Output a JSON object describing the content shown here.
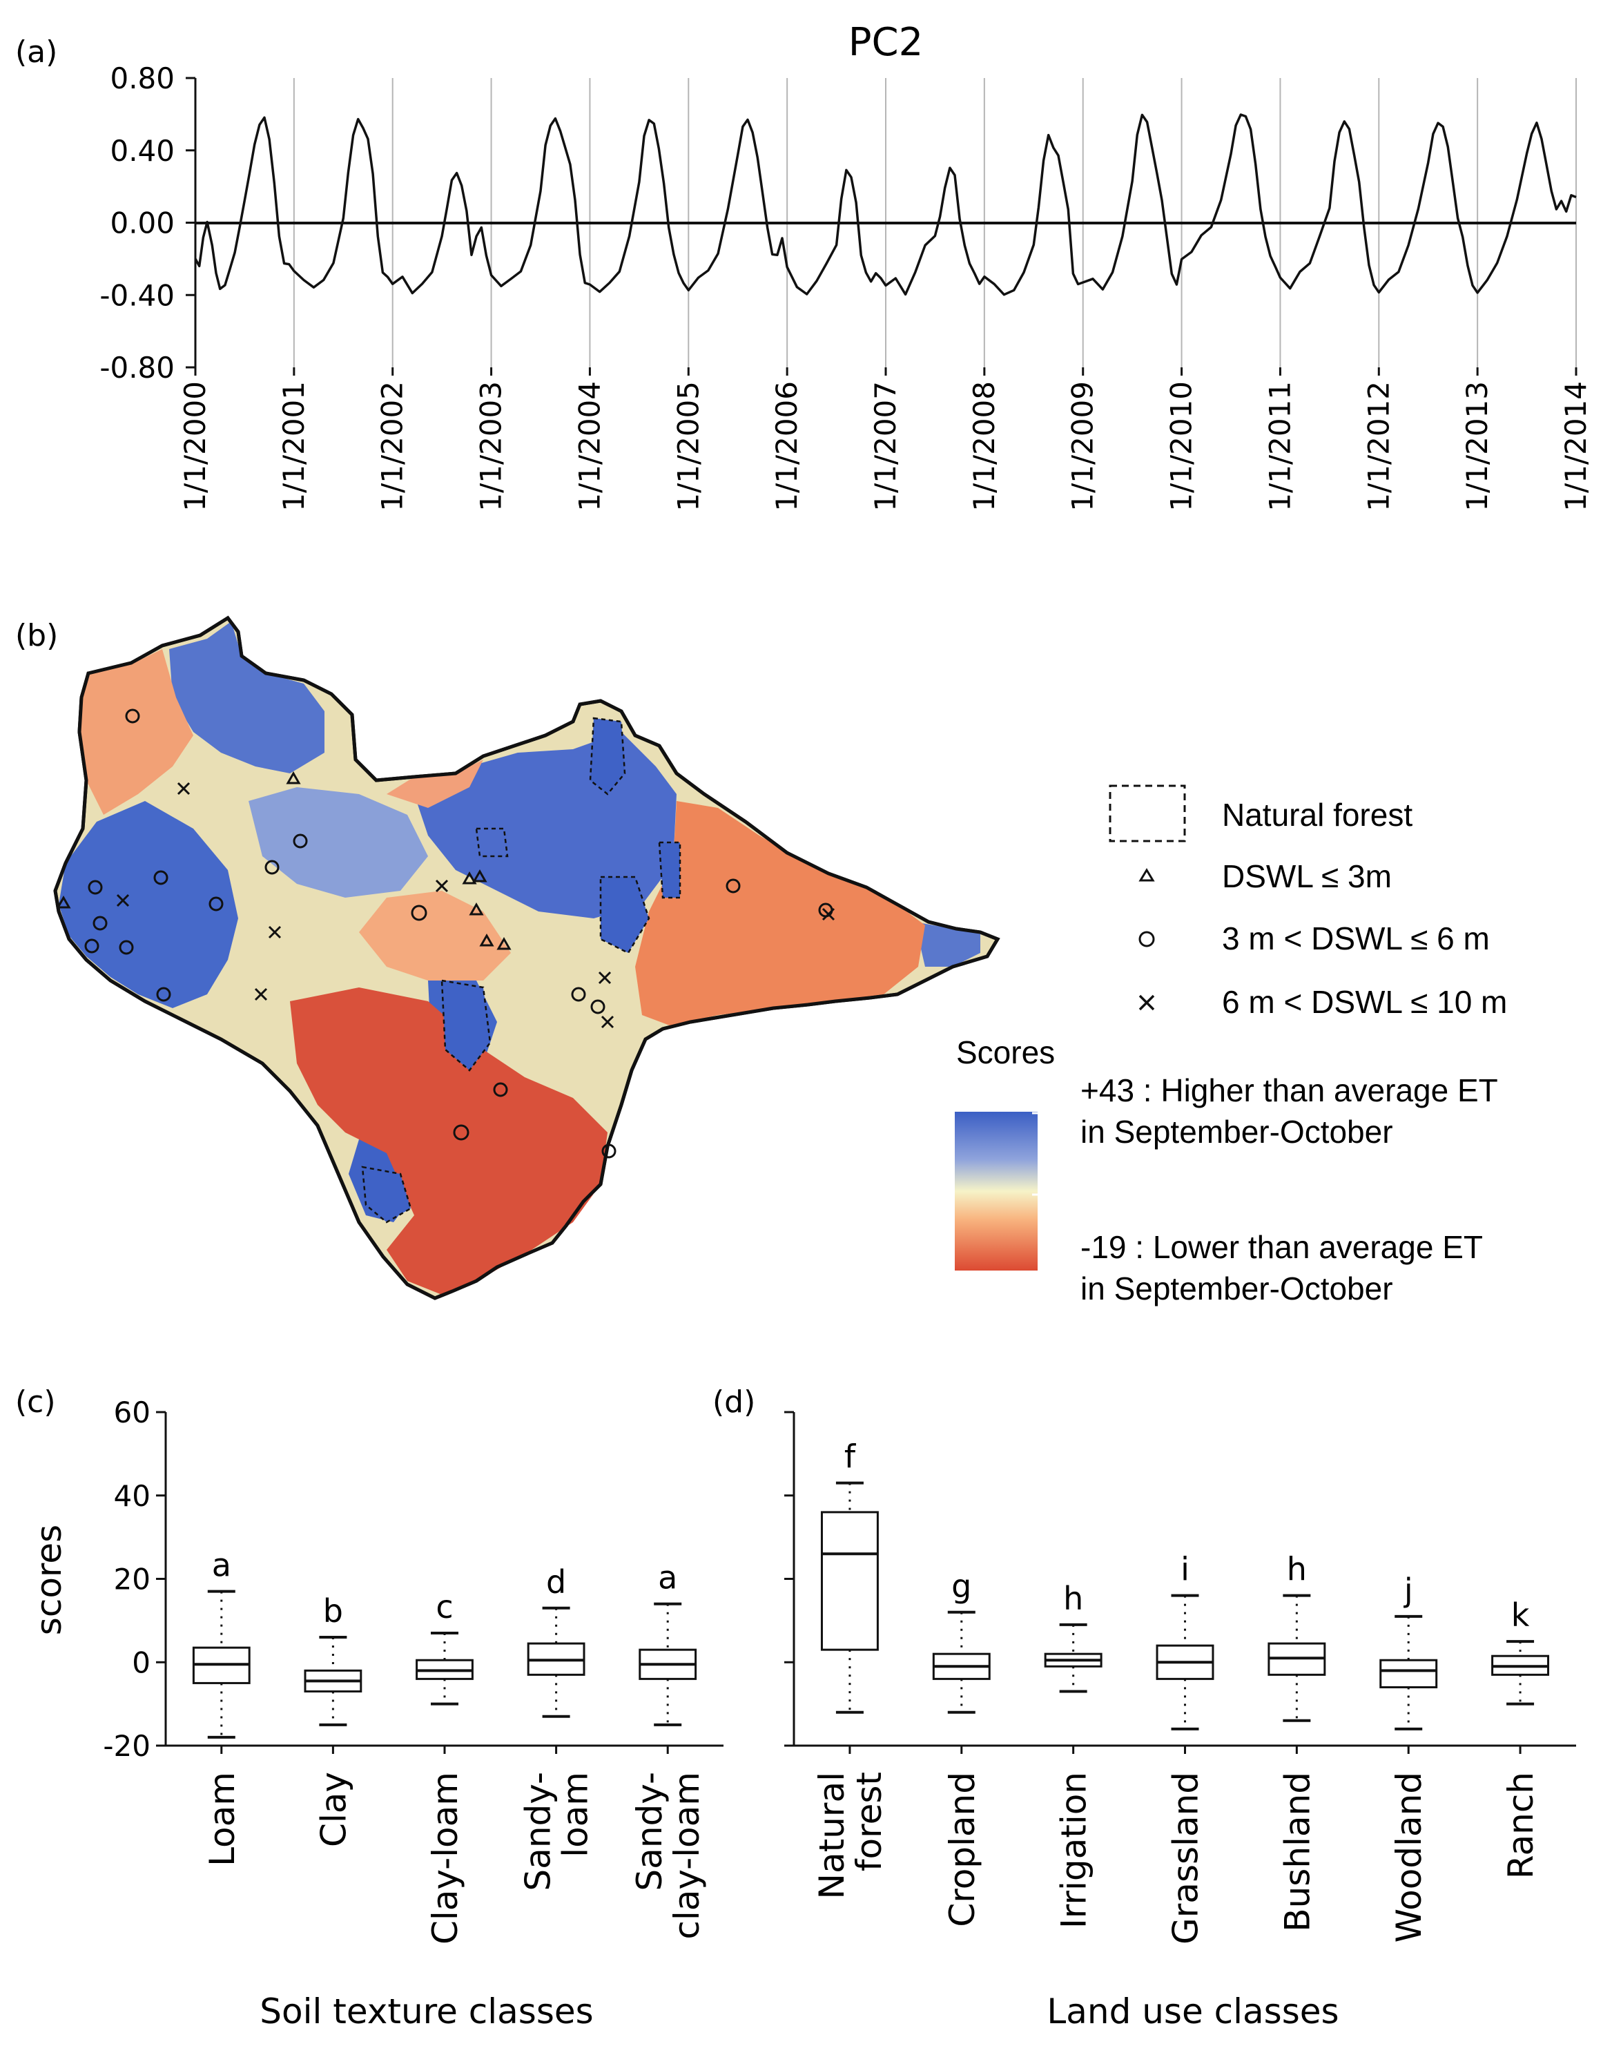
{
  "panels": {
    "a": "(a)",
    "b": "(b)",
    "c": "(c)",
    "d": "(d)"
  },
  "chart_data": [
    {
      "type": "line",
      "panel": "(a)",
      "title": "PC2",
      "xlabel": "",
      "ylabel": "",
      "ylim": [
        -0.8,
        0.8
      ],
      "yticks": [
        "0.80",
        "0.40",
        "0.00",
        "-0.40",
        "-0.80"
      ],
      "x_tick_labels": [
        "1/1/2000",
        "1/1/2001",
        "1/1/2002",
        "1/1/2003",
        "1/1/2004",
        "1/1/2005",
        "1/1/2006",
        "1/1/2007",
        "1/1/2008",
        "1/1/2009",
        "1/1/2010",
        "1/1/2011",
        "1/1/2012",
        "1/1/2013",
        "1/1/2014"
      ],
      "xlim_years": [
        2000,
        2014
      ],
      "vertical_gridlines": true,
      "series": [
        {
          "name": "PC2",
          "x": [
            2000.0,
            2000.04,
            2000.08,
            2000.12,
            2000.17,
            2000.21,
            2000.25,
            2000.3,
            2000.35,
            2000.4,
            2000.45,
            2000.5,
            2000.55,
            2000.6,
            2000.65,
            2000.7,
            2000.75,
            2000.8,
            2000.85,
            2000.9,
            2000.95,
            2001.0,
            2001.1,
            2001.2,
            2001.3,
            2001.4,
            2001.5,
            2001.55,
            2001.6,
            2001.65,
            2001.7,
            2001.75,
            2001.8,
            2001.85,
            2001.9,
            2001.95,
            2002.0,
            2002.1,
            2002.2,
            2002.3,
            2002.4,
            2002.5,
            2002.55,
            2002.6,
            2002.65,
            2002.7,
            2002.75,
            2002.8,
            2002.85,
            2002.9,
            2002.95,
            2003.0,
            2003.1,
            2003.2,
            2003.3,
            2003.4,
            2003.5,
            2003.55,
            2003.6,
            2003.65,
            2003.7,
            2003.75,
            2003.8,
            2003.85,
            2003.9,
            2003.95,
            2004.0,
            2004.1,
            2004.2,
            2004.3,
            2004.4,
            2004.5,
            2004.55,
            2004.6,
            2004.65,
            2004.7,
            2004.75,
            2004.8,
            2004.85,
            2004.9,
            2004.95,
            2005.0,
            2005.1,
            2005.2,
            2005.3,
            2005.4,
            2005.5,
            2005.55,
            2005.6,
            2005.65,
            2005.7,
            2005.75,
            2005.8,
            2005.85,
            2005.9,
            2005.95,
            2006.0,
            2006.1,
            2006.2,
            2006.3,
            2006.4,
            2006.5,
            2006.55,
            2006.6,
            2006.65,
            2006.7,
            2006.75,
            2006.8,
            2006.85,
            2006.9,
            2006.95,
            2007.0,
            2007.1,
            2007.2,
            2007.3,
            2007.4,
            2007.5,
            2007.55,
            2007.6,
            2007.65,
            2007.7,
            2007.75,
            2007.8,
            2007.85,
            2007.9,
            2007.95,
            2008.0,
            2008.1,
            2008.2,
            2008.3,
            2008.4,
            2008.5,
            2008.55,
            2008.6,
            2008.65,
            2008.7,
            2008.75,
            2008.8,
            2008.85,
            2008.9,
            2008.95,
            2009.0,
            2009.1,
            2009.2,
            2009.3,
            2009.4,
            2009.5,
            2009.55,
            2009.6,
            2009.65,
            2009.7,
            2009.75,
            2009.8,
            2009.85,
            2009.9,
            2009.95,
            2010.0,
            2010.1,
            2010.2,
            2010.3,
            2010.4,
            2010.5,
            2010.55,
            2010.6,
            2010.65,
            2010.7,
            2010.75,
            2010.8,
            2010.85,
            2010.9,
            2010.95,
            2011.0,
            2011.1,
            2011.2,
            2011.3,
            2011.4,
            2011.5,
            2011.55,
            2011.6,
            2011.65,
            2011.7,
            2011.75,
            2011.8,
            2011.85,
            2011.9,
            2011.95,
            2012.0,
            2012.1,
            2012.2,
            2012.3,
            2012.4,
            2012.5,
            2012.55,
            2012.6,
            2012.65,
            2012.7,
            2012.75,
            2012.8,
            2012.85,
            2012.9,
            2012.95,
            2013.0,
            2013.1,
            2013.2,
            2013.3,
            2013.4,
            2013.5,
            2013.55,
            2013.6,
            2013.65,
            2013.7,
            2013.75,
            2013.8,
            2013.85,
            2013.9,
            2013.95,
            2014.0
          ],
          "values": [
            -0.2,
            -0.25,
            -0.1,
            -0.02,
            -0.15,
            -0.3,
            -0.38,
            -0.35,
            -0.25,
            -0.15,
            0.0,
            0.15,
            0.3,
            0.45,
            0.55,
            0.58,
            0.45,
            0.2,
            -0.1,
            -0.25,
            -0.25,
            -0.28,
            -0.32,
            -0.35,
            -0.3,
            -0.2,
            0.05,
            0.3,
            0.5,
            0.58,
            0.52,
            0.45,
            0.25,
            -0.1,
            -0.3,
            -0.32,
            -0.35,
            -0.3,
            -0.38,
            -0.32,
            -0.25,
            -0.05,
            0.1,
            0.25,
            0.28,
            0.2,
            0.05,
            -0.2,
            -0.1,
            -0.05,
            -0.2,
            -0.3,
            -0.35,
            -0.3,
            -0.25,
            -0.1,
            0.2,
            0.45,
            0.55,
            0.58,
            0.5,
            0.4,
            0.3,
            0.1,
            -0.2,
            -0.35,
            -0.35,
            -0.38,
            -0.32,
            -0.25,
            -0.05,
            0.25,
            0.5,
            0.58,
            0.55,
            0.4,
            0.2,
            -0.05,
            -0.2,
            -0.3,
            -0.35,
            -0.38,
            -0.3,
            -0.25,
            -0.15,
            0.1,
            0.4,
            0.55,
            0.58,
            0.5,
            0.35,
            0.15,
            -0.05,
            -0.2,
            -0.2,
            -0.1,
            -0.25,
            -0.35,
            -0.38,
            -0.3,
            -0.2,
            -0.1,
            0.15,
            0.3,
            0.25,
            0.1,
            -0.2,
            -0.3,
            -0.35,
            -0.3,
            -0.32,
            -0.35,
            -0.3,
            -0.38,
            -0.25,
            -0.1,
            -0.05,
            0.05,
            0.2,
            0.3,
            0.25,
            0.0,
            -0.15,
            -0.25,
            -0.3,
            -0.35,
            -0.3,
            -0.33,
            -0.38,
            -0.35,
            -0.25,
            -0.1,
            0.1,
            0.35,
            0.48,
            0.4,
            0.35,
            0.2,
            0.05,
            -0.3,
            -0.35,
            -0.33,
            -0.3,
            -0.35,
            -0.25,
            -0.05,
            0.25,
            0.5,
            0.6,
            0.55,
            0.4,
            0.25,
            0.1,
            -0.1,
            -0.3,
            -0.35,
            -0.2,
            -0.15,
            -0.05,
            0.0,
            0.15,
            0.4,
            0.55,
            0.6,
            0.58,
            0.5,
            0.3,
            0.05,
            -0.1,
            -0.2,
            -0.25,
            -0.3,
            -0.35,
            -0.25,
            -0.2,
            -0.05,
            0.1,
            0.35,
            0.5,
            0.55,
            0.5,
            0.35,
            0.2,
            -0.05,
            -0.25,
            -0.35,
            -0.38,
            -0.3,
            -0.25,
            -0.1,
            0.1,
            0.35,
            0.5,
            0.55,
            0.52,
            0.4,
            0.2,
            0.0,
            -0.1,
            -0.25,
            -0.35,
            -0.38,
            -0.3,
            -0.2,
            -0.05,
            0.15,
            0.4,
            0.5,
            0.55,
            0.45,
            0.3,
            0.15,
            0.05,
            0.1,
            0.05,
            0.15,
            0.15
          ]
        }
      ]
    },
    {
      "type": "map",
      "panel": "(b)",
      "legend": {
        "natural_forest": "Natural forest",
        "dswl_1": "DSWL ≤ 3m",
        "dswl_2": "3 m < DSWL ≤ 6 m",
        "dswl_3": "6 m <  DSWL ≤ 10 m",
        "scores_title": "Scores",
        "high_line1": "+43 : Higher than average ET",
        "high_line2": "in September-October",
        "low_line1": "-19 : Lower than average ET",
        "low_line2": "in September-October"
      },
      "scale": {
        "max": 43,
        "min": -19,
        "colors": [
          "#3b5fc4",
          "#9fb0dc",
          "#f4f1c2",
          "#f7b07a",
          "#dc4a32"
        ]
      },
      "basin_colors": {
        "blue": "#4466c8",
        "pale": "#e8dfb2",
        "orange": "#ef8a5a",
        "red": "#d9503a"
      }
    },
    {
      "type": "box",
      "panel": "(c)",
      "ylabel": "scores",
      "xlabel": "Soil texture classes",
      "ylim": [
        -20,
        60
      ],
      "yticks": [
        "60",
        "40",
        "20",
        "0",
        "-20"
      ],
      "categories": [
        "Loam",
        "Clay",
        "Clay-loam",
        "Sandy-loam",
        "Sandy-clay-loam"
      ],
      "category_lines": [
        [
          "Loam"
        ],
        [
          "Clay"
        ],
        [
          "Clay-loam"
        ],
        [
          "Sandy-",
          "loam"
        ],
        [
          "Sandy-",
          "clay-loam"
        ]
      ],
      "letters": [
        "a",
        "b",
        "c",
        "d",
        "a"
      ],
      "boxes": [
        {
          "whisker_low": -18,
          "q1": -5,
          "median": -0.5,
          "q3": 3.5,
          "whisker_high": 17
        },
        {
          "whisker_low": -15,
          "q1": -7,
          "median": -4.5,
          "q3": -2,
          "whisker_high": 6
        },
        {
          "whisker_low": -10,
          "q1": -4,
          "median": -2,
          "q3": 0.5,
          "whisker_high": 7
        },
        {
          "whisker_low": -13,
          "q1": -3,
          "median": 0.5,
          "q3": 4.5,
          "whisker_high": 13
        },
        {
          "whisker_low": -15,
          "q1": -4,
          "median": -0.5,
          "q3": 3,
          "whisker_high": 14
        }
      ]
    },
    {
      "type": "box",
      "panel": "(d)",
      "ylabel": "",
      "xlabel": "Land use classes",
      "ylim": [
        -20,
        60
      ],
      "categories": [
        "Natural forest",
        "Cropland",
        "Irrigation",
        "Grassland",
        "Bushland",
        "Woodland",
        "Ranch"
      ],
      "category_lines": [
        [
          "Natural",
          "forest"
        ],
        [
          "Cropland"
        ],
        [
          "Irrigation"
        ],
        [
          "Grassland"
        ],
        [
          "Bushland"
        ],
        [
          "Woodland"
        ],
        [
          "Ranch"
        ]
      ],
      "letters": [
        "f",
        "g",
        "h",
        "i",
        "h",
        "j",
        "k"
      ],
      "boxes": [
        {
          "whisker_low": -12,
          "q1": 3,
          "median": 26,
          "q3": 36,
          "whisker_high": 43
        },
        {
          "whisker_low": -12,
          "q1": -4,
          "median": -1,
          "q3": 2,
          "whisker_high": 12
        },
        {
          "whisker_low": -7,
          "q1": -1,
          "median": 0.5,
          "q3": 2,
          "whisker_high": 9
        },
        {
          "whisker_low": -16,
          "q1": -4,
          "median": 0,
          "q3": 4,
          "whisker_high": 16
        },
        {
          "whisker_low": -14,
          "q1": -3,
          "median": 1,
          "q3": 4.5,
          "whisker_high": 16
        },
        {
          "whisker_low": -16,
          "q1": -6,
          "median": -2,
          "q3": 0.5,
          "whisker_high": 11
        },
        {
          "whisker_low": -10,
          "q1": -3,
          "median": -1,
          "q3": 1.5,
          "whisker_high": 5
        }
      ]
    }
  ]
}
